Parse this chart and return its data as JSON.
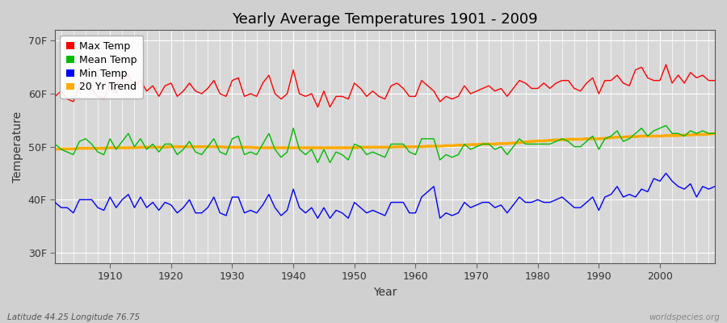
{
  "title": "Yearly Average Temperatures 1901 - 2009",
  "xlabel": "Year",
  "ylabel": "Temperature",
  "x_start": 1901,
  "x_end": 2009,
  "yticks": [
    30,
    40,
    50,
    60,
    70
  ],
  "ytick_labels": [
    "30F",
    "40F",
    "50F",
    "60F",
    "70F"
  ],
  "xticks": [
    1910,
    1920,
    1930,
    1940,
    1950,
    1960,
    1970,
    1980,
    1990,
    2000
  ],
  "ylim": [
    28,
    72
  ],
  "xlim": [
    1901,
    2009
  ],
  "background_color": "#d0d0d0",
  "plot_bg_color": "#d8d8d8",
  "grid_color": "#ffffff",
  "legend_labels": [
    "Max Temp",
    "Mean Temp",
    "Min Temp",
    "20 Yr Trend"
  ],
  "legend_colors": [
    "#ff0000",
    "#00bb00",
    "#0000ff",
    "#ffaa00"
  ],
  "footer_left": "Latitude 44.25 Longitude 76.75",
  "footer_right": "worldspecies.org",
  "max_temp": [
    59.5,
    60.5,
    59.0,
    58.5,
    61.5,
    62.5,
    61.0,
    59.5,
    59.0,
    62.0,
    60.0,
    62.5,
    63.5,
    61.5,
    62.5,
    60.5,
    61.5,
    59.5,
    61.5,
    62.0,
    59.5,
    60.5,
    62.0,
    60.5,
    60.0,
    61.0,
    62.5,
    60.0,
    59.5,
    62.5,
    63.0,
    59.5,
    60.0,
    59.5,
    62.0,
    63.5,
    60.0,
    59.0,
    60.0,
    64.5,
    60.0,
    59.5,
    60.0,
    57.5,
    60.5,
    57.5,
    59.5,
    59.5,
    59.0,
    62.0,
    61.0,
    59.5,
    60.5,
    59.5,
    59.0,
    61.5,
    62.0,
    61.0,
    59.5,
    59.5,
    62.5,
    61.5,
    60.5,
    58.5,
    59.5,
    59.0,
    59.5,
    61.5,
    60.0,
    60.5,
    61.0,
    61.5,
    60.5,
    61.0,
    59.5,
    61.0,
    62.5,
    62.0,
    61.0,
    61.0,
    62.0,
    61.0,
    62.0,
    62.5,
    62.5,
    61.0,
    60.5,
    62.0,
    63.0,
    60.0,
    62.5,
    62.5,
    63.5,
    62.0,
    61.5,
    64.5,
    65.0,
    63.0,
    62.5,
    62.5,
    65.5,
    62.0,
    63.5,
    62.0,
    64.0,
    63.0,
    63.5,
    62.5,
    62.5
  ],
  "mean_temp": [
    50.5,
    49.5,
    49.0,
    48.5,
    51.0,
    51.5,
    50.5,
    49.0,
    48.5,
    51.5,
    49.5,
    51.0,
    52.5,
    50.0,
    51.5,
    49.5,
    50.5,
    49.0,
    50.5,
    50.5,
    48.5,
    49.5,
    51.0,
    49.0,
    48.5,
    50.0,
    51.5,
    49.0,
    48.5,
    51.5,
    52.0,
    48.5,
    49.0,
    48.5,
    50.5,
    52.5,
    49.5,
    48.0,
    49.0,
    53.5,
    49.5,
    48.5,
    49.5,
    47.0,
    49.5,
    47.0,
    49.0,
    48.5,
    47.5,
    50.5,
    50.0,
    48.5,
    49.0,
    48.5,
    48.0,
    50.5,
    50.5,
    50.5,
    49.0,
    48.5,
    51.5,
    51.5,
    51.5,
    47.5,
    48.5,
    48.0,
    48.5,
    50.5,
    49.5,
    50.0,
    50.5,
    50.5,
    49.5,
    50.0,
    48.5,
    50.0,
    51.5,
    50.5,
    50.5,
    50.5,
    50.5,
    50.5,
    51.0,
    51.5,
    51.0,
    50.0,
    50.0,
    51.0,
    52.0,
    49.5,
    51.5,
    52.0,
    53.0,
    51.0,
    51.5,
    52.5,
    53.5,
    52.0,
    53.0,
    53.5,
    54.0,
    52.5,
    52.5,
    52.0,
    53.0,
    52.5,
    53.0,
    52.5,
    52.5
  ],
  "min_temp": [
    39.5,
    38.5,
    38.5,
    37.5,
    40.0,
    40.0,
    40.0,
    38.5,
    38.0,
    40.5,
    38.5,
    40.0,
    41.0,
    38.5,
    40.5,
    38.5,
    39.5,
    38.0,
    39.5,
    39.0,
    37.5,
    38.5,
    40.0,
    37.5,
    37.5,
    38.5,
    40.5,
    37.5,
    37.0,
    40.5,
    40.5,
    37.5,
    38.0,
    37.5,
    39.0,
    41.0,
    38.5,
    37.0,
    38.0,
    42.0,
    38.5,
    37.5,
    38.5,
    36.5,
    38.5,
    36.5,
    38.0,
    37.5,
    36.5,
    39.5,
    38.5,
    37.5,
    38.0,
    37.5,
    37.0,
    39.5,
    39.5,
    39.5,
    37.5,
    37.5,
    40.5,
    41.5,
    42.5,
    36.5,
    37.5,
    37.0,
    37.5,
    39.5,
    38.5,
    39.0,
    39.5,
    39.5,
    38.5,
    39.0,
    37.5,
    39.0,
    40.5,
    39.5,
    39.5,
    40.0,
    39.5,
    39.5,
    40.0,
    40.5,
    39.5,
    38.5,
    38.5,
    39.5,
    40.5,
    38.0,
    40.5,
    41.0,
    42.5,
    40.5,
    41.0,
    40.5,
    42.0,
    41.5,
    44.0,
    43.5,
    45.0,
    43.5,
    42.5,
    42.0,
    43.0,
    40.5,
    42.5,
    42.0,
    42.5
  ],
  "trend_temp": [
    49.5,
    49.6,
    49.6,
    49.6,
    49.7,
    49.7,
    49.7,
    49.7,
    49.7,
    49.8,
    49.8,
    49.8,
    49.8,
    49.8,
    49.9,
    49.9,
    49.9,
    49.9,
    49.9,
    50.0,
    50.0,
    50.0,
    50.0,
    50.0,
    50.0,
    50.0,
    50.0,
    50.0,
    49.9,
    49.9,
    49.9,
    49.9,
    49.9,
    49.8,
    49.8,
    49.8,
    49.8,
    49.8,
    49.8,
    49.8,
    49.8,
    49.8,
    49.8,
    49.8,
    49.8,
    49.8,
    49.8,
    49.8,
    49.8,
    49.8,
    49.9,
    49.9,
    49.9,
    49.9,
    49.9,
    49.9,
    50.0,
    50.0,
    50.0,
    50.0,
    50.0,
    50.1,
    50.1,
    50.1,
    50.2,
    50.2,
    50.3,
    50.3,
    50.4,
    50.4,
    50.5,
    50.5,
    50.5,
    50.6,
    50.6,
    50.7,
    50.8,
    50.9,
    51.0,
    51.1,
    51.1,
    51.2,
    51.3,
    51.3,
    51.4,
    51.4,
    51.4,
    51.5,
    51.5,
    51.5,
    51.6,
    51.7,
    51.8,
    51.8,
    51.9,
    51.9,
    52.0,
    52.0,
    52.0,
    52.0,
    52.1,
    52.1,
    52.1,
    52.2,
    52.2,
    52.3,
    52.3,
    52.4,
    52.5
  ]
}
